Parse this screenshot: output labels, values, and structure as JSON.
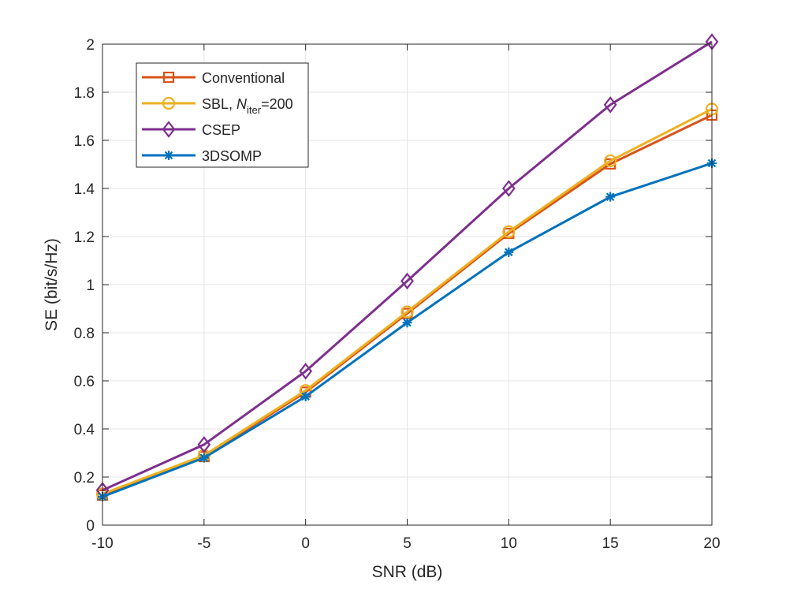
{
  "chart_data": {
    "type": "line",
    "title": "",
    "xlabel": "SNR (dB)",
    "ylabel": "SE (bit/s/Hz)",
    "x": [
      -10,
      -5,
      0,
      5,
      10,
      15,
      20
    ],
    "xlim": [
      -10,
      20
    ],
    "ylim": [
      0,
      2
    ],
    "xticks": [
      "-10",
      "-5",
      "0",
      "5",
      "10",
      "15",
      "20"
    ],
    "yticks": [
      "0",
      "0.2",
      "0.4",
      "0.6",
      "0.8",
      "1",
      "1.2",
      "1.4",
      "1.6",
      "1.8",
      "2"
    ],
    "grid": true,
    "legend_position": "top-left",
    "series": [
      {
        "name": "Conventional",
        "color": "#D95319",
        "marker": "square",
        "values": [
          0.125,
          0.285,
          0.553,
          0.88,
          1.213,
          1.502,
          1.705
        ]
      },
      {
        "name": "SBL, N_iter=200",
        "label_prefix": "SBL, ",
        "label_var": "N",
        "label_sub": "iter",
        "label_suffix": "=200",
        "color": "#EDB120",
        "marker": "circle",
        "values": [
          0.13,
          0.29,
          0.56,
          0.887,
          1.22,
          1.515,
          1.73
        ]
      },
      {
        "name": "CSEP",
        "color": "#7E2F8E",
        "marker": "diamond",
        "values": [
          0.145,
          0.335,
          0.64,
          1.015,
          1.4,
          1.748,
          2.01
        ]
      },
      {
        "name": "3DSOMP",
        "color": "#0072BD",
        "marker": "asterisk",
        "values": [
          0.118,
          0.28,
          0.535,
          0.842,
          1.135,
          1.365,
          1.505
        ]
      }
    ]
  }
}
